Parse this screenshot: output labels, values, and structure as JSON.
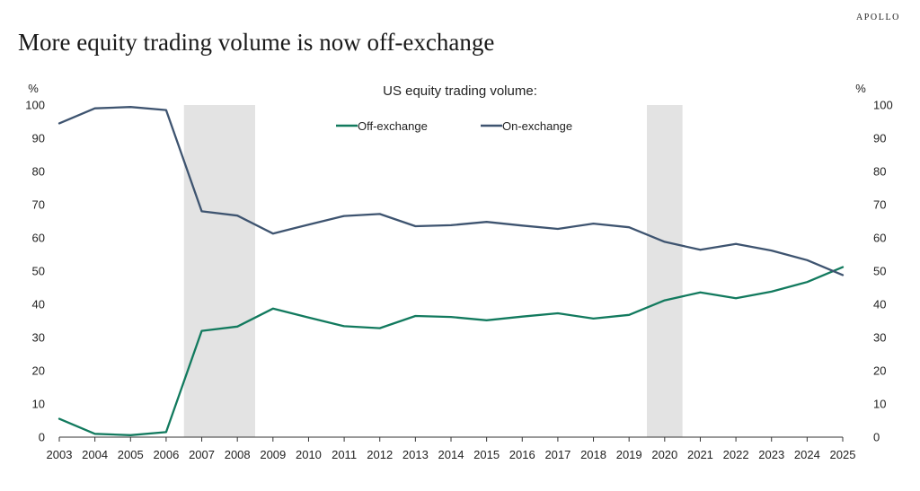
{
  "header": {
    "brand": "APOLLO",
    "title": "More equity trading volume is now off-exchange"
  },
  "chart_data": {
    "type": "line",
    "title": "US equity trading volume:",
    "ylabel_left": "%",
    "ylabel_right": "%",
    "ylim": [
      0,
      100
    ],
    "yticks": [
      0,
      10,
      20,
      30,
      40,
      50,
      60,
      70,
      80,
      90,
      100
    ],
    "x": [
      "2003",
      "2004",
      "2005",
      "2006",
      "2007",
      "2008",
      "2009",
      "2010",
      "2011",
      "2012",
      "2013",
      "2014",
      "2015",
      "2016",
      "2017",
      "2018",
      "2019",
      "2020",
      "2021",
      "2022",
      "2023",
      "2024",
      "2025"
    ],
    "recession_bands": [
      [
        2006.5,
        2008.5
      ],
      [
        2019.5,
        2020.5
      ]
    ],
    "series": [
      {
        "name": "Off-exchange",
        "color": "#127a5e",
        "values": [
          5.5,
          1.0,
          0.6,
          1.5,
          32.0,
          33.3,
          38.7,
          36.0,
          33.4,
          32.8,
          36.5,
          36.2,
          35.2,
          36.3,
          37.3,
          35.7,
          36.8,
          41.2,
          43.6,
          41.8,
          43.8,
          46.7,
          51.2
        ]
      },
      {
        "name": "On-exchange",
        "color": "#3e5470",
        "values": [
          94.5,
          99.0,
          99.4,
          98.5,
          68.0,
          66.7,
          61.3,
          64.0,
          66.6,
          67.2,
          63.5,
          63.8,
          64.8,
          63.7,
          62.7,
          64.3,
          63.2,
          58.8,
          56.4,
          58.2,
          56.2,
          53.3,
          48.8
        ]
      }
    ],
    "band_color": "#e3e3e3",
    "axis_color": "#333333"
  }
}
